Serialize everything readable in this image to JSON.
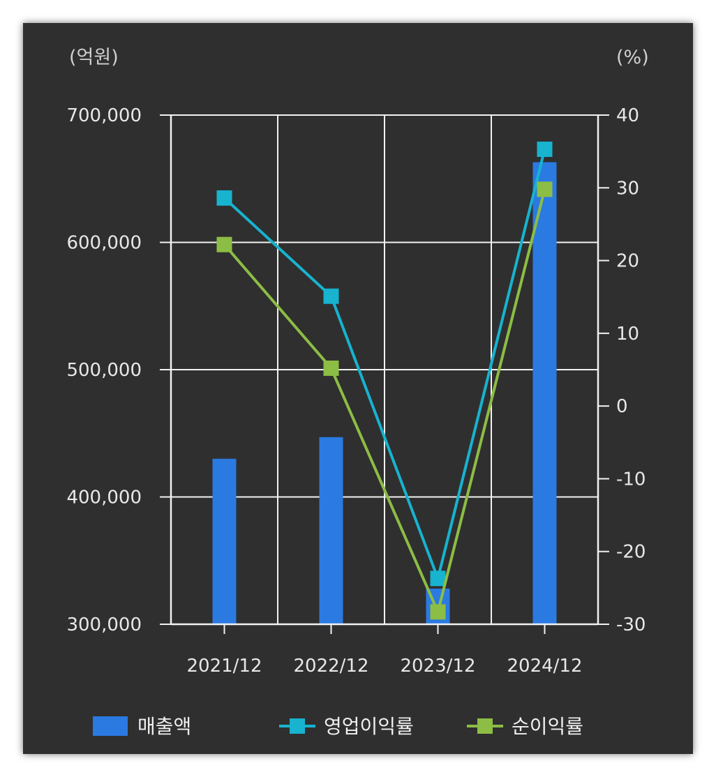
{
  "chart_data": {
    "type": "bar+line",
    "categories": [
      "2021/12",
      "2022/12",
      "2023/12",
      "2024/12"
    ],
    "left_axis": {
      "unit": "(억원)",
      "range": [
        300000,
        700000
      ],
      "ticks": [
        300000,
        400000,
        500000,
        600000,
        700000
      ],
      "tick_labels": [
        "300,000",
        "400,000",
        "500,000",
        "600,000",
        "700,000"
      ]
    },
    "right_axis": {
      "unit": "(%)",
      "range": [
        -30,
        40
      ],
      "ticks": [
        -30,
        -20,
        -10,
        0,
        10,
        20,
        30,
        40
      ],
      "tick_labels": [
        "-30",
        "-20",
        "-10",
        "0",
        "10",
        "20",
        "30",
        "40"
      ]
    },
    "grid": true,
    "legend_position": "bottom",
    "series": [
      {
        "name": "매출액",
        "type": "bar",
        "axis": "left",
        "color": "#2a7ae2",
        "values": [
          430000,
          447000,
          328000,
          663000
        ]
      },
      {
        "name": "영업이익률",
        "type": "line",
        "axis": "right",
        "color": "#17b3cf",
        "values": [
          28.6,
          15.1,
          -23.7,
          35.3
        ]
      },
      {
        "name": "순이익률",
        "type": "line",
        "axis": "right",
        "color": "#8cbd45",
        "values": [
          22.2,
          5.2,
          -28.3,
          29.8
        ]
      }
    ]
  }
}
